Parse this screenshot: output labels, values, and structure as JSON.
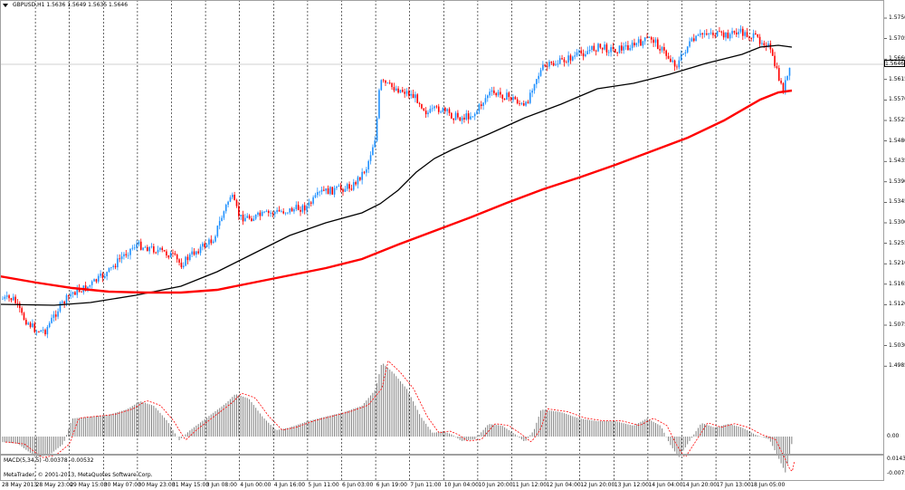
{
  "chart": {
    "symbol_header": "GBPUSD,H1  1.5636 1.5649 1.5635 1.5646",
    "current_price": "1.5646",
    "price_ticks": [
      "1.5750",
      "1.5705",
      "1.5660",
      "1.5615",
      "1.5570",
      "1.5525",
      "1.5480",
      "1.5435",
      "1.5390",
      "1.5345",
      "1.5300",
      "1.5255",
      "1.5210",
      "1.5165",
      "1.5120",
      "1.5075",
      "1.5030",
      "1.4985"
    ],
    "time_ticks": [
      "28 May 2013",
      "28 May 23:00",
      "29 May 15:00",
      "30 May 07:00",
      "30 May 23:00",
      "31 May 15:00",
      "3 Jun 08:00",
      "4 Jun 00:00",
      "4 Jun 16:00",
      "5 Jun 11:00",
      "6 Jun 03:00",
      "6 Jun 19:00",
      "7 Jun 11:00",
      "10 Jun 04:00",
      "10 Jun 20:00",
      "11 Jun 12:00",
      "12 Jun 04:00",
      "12 Jun 20:00",
      "13 Jun 12:00",
      "14 Jun 04:00",
      "14 Jun 20:00",
      "17 Jun 13:00",
      "18 Jun 05:00"
    ],
    "colors": {
      "bull": "#1e90ff",
      "bear": "#ff0000",
      "ma_fast": "#000000",
      "ma_slow": "#ff0000",
      "grid": "#000000"
    }
  },
  "macd": {
    "header": "MACD(5,34,5) -0.00378 -0.00532",
    "ticks": [
      "0.01438",
      "0.00",
      "-0.0073"
    ],
    "colors": {
      "histogram": "#808080",
      "signal": "#ff0000"
    }
  },
  "footer": {
    "copyright": "MetaTrader, © 2001-2013, MetaQuotes Software Corp."
  }
}
